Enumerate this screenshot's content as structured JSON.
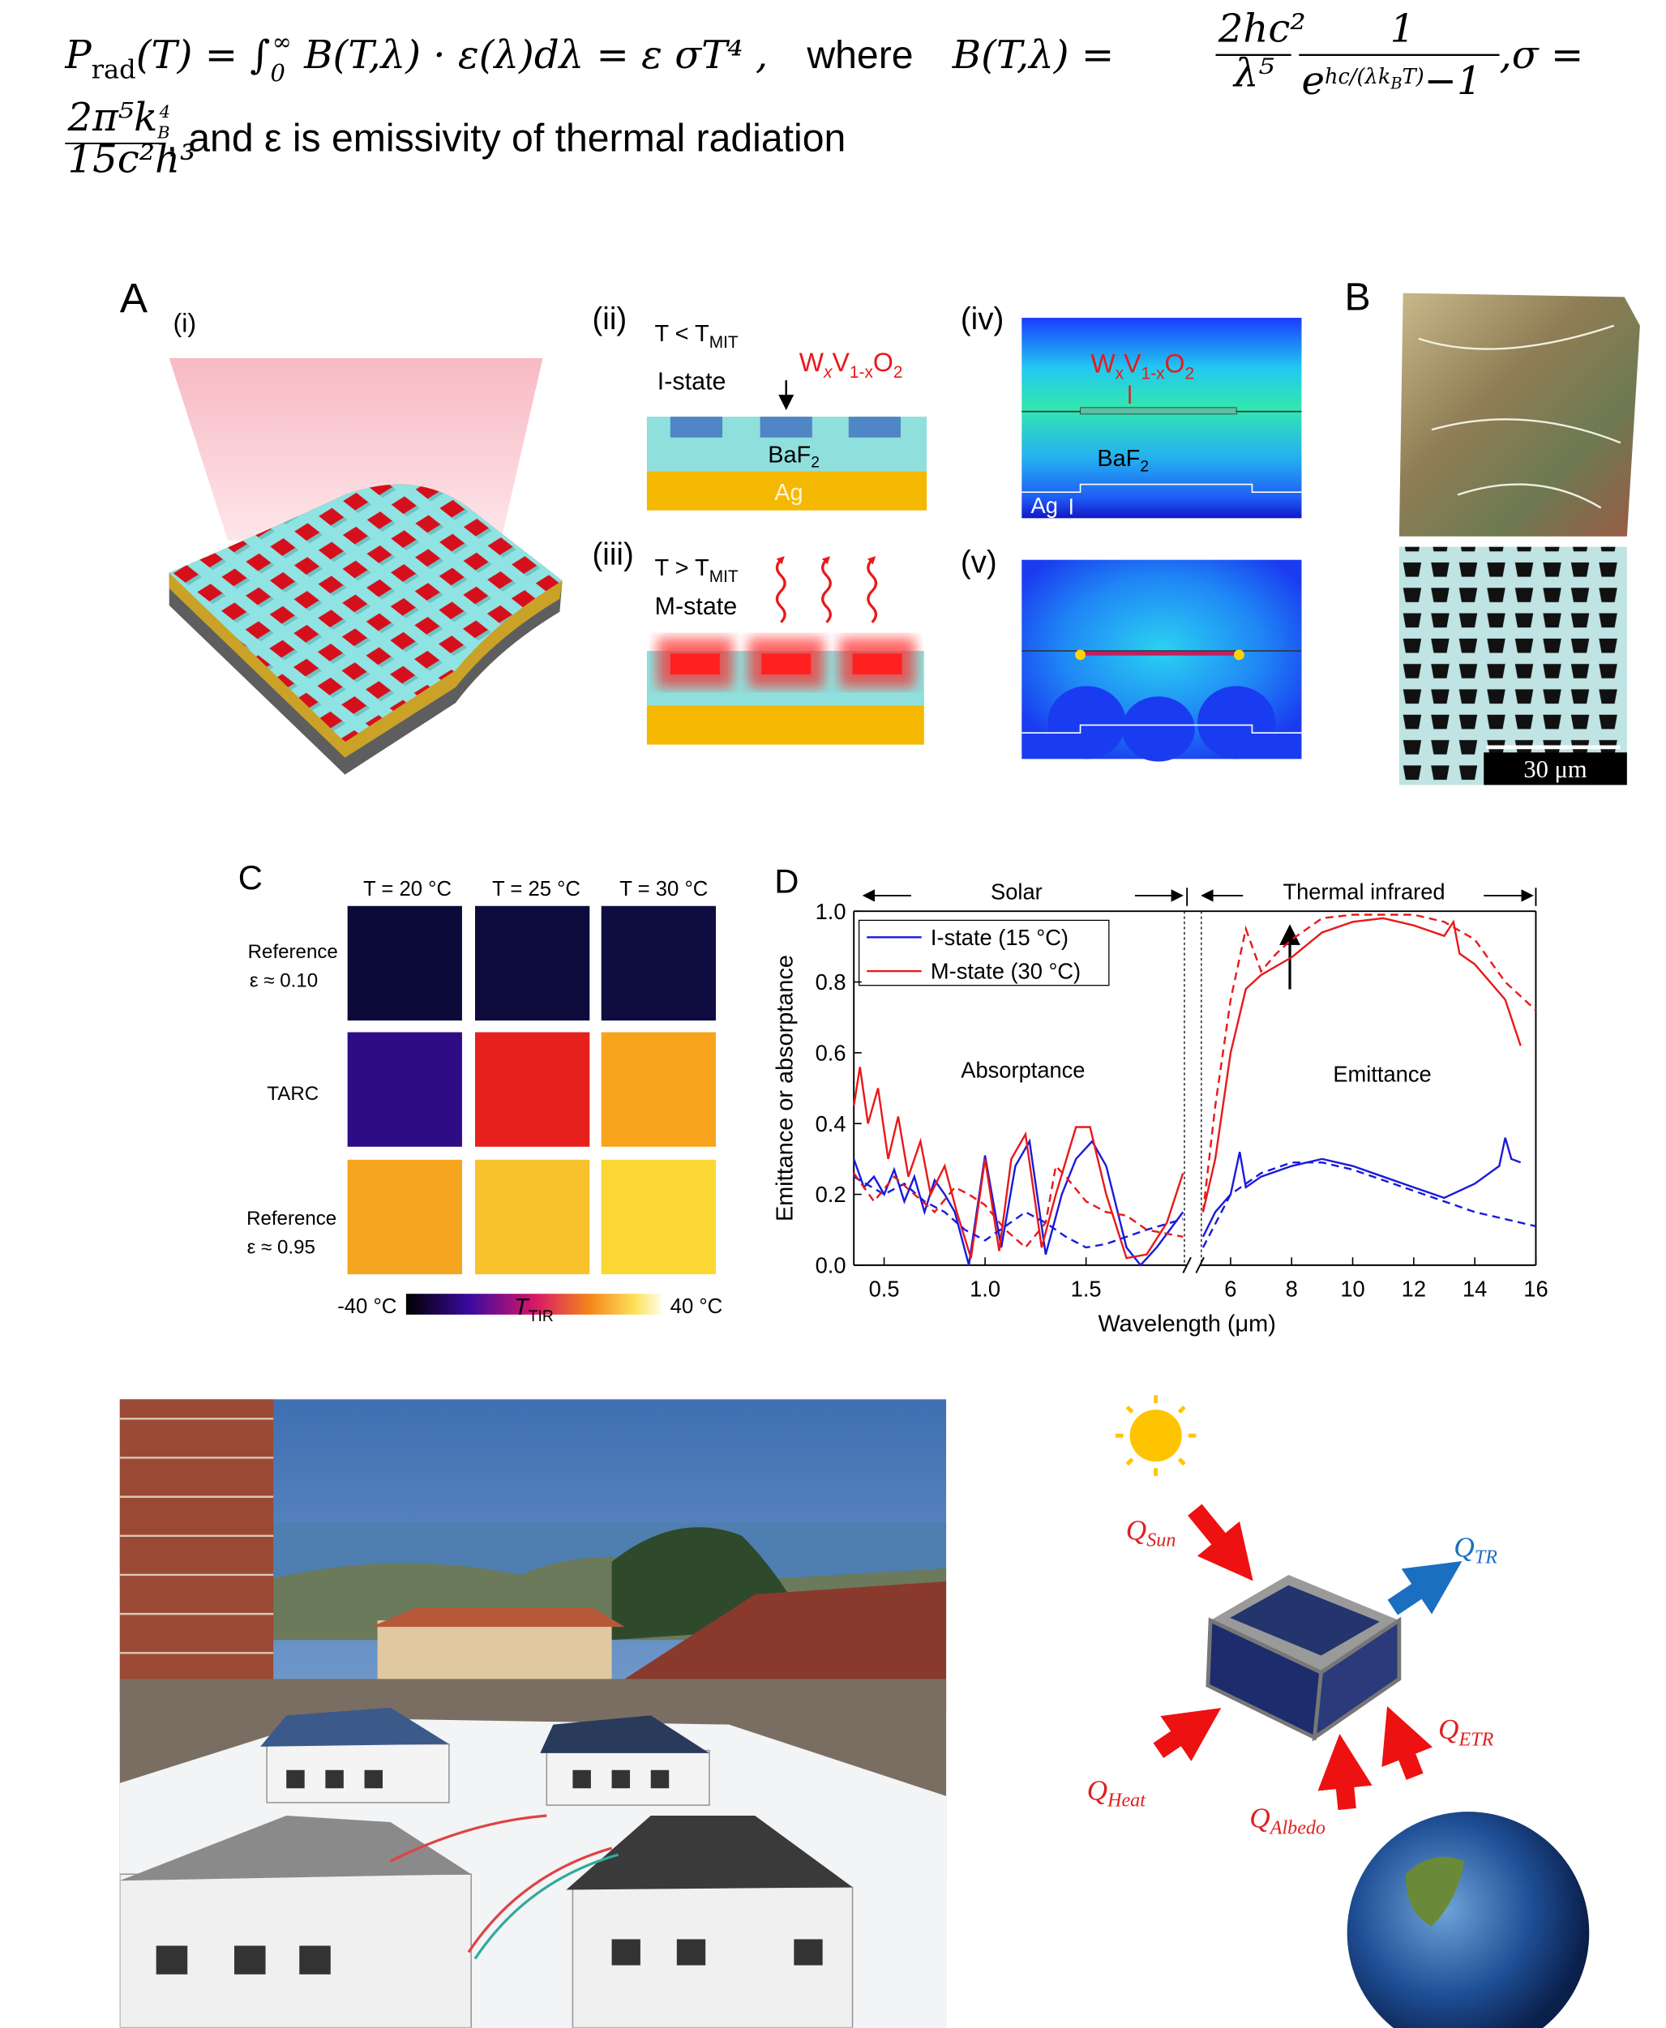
{
  "equation": {
    "line1": [
      "P",
      "rad",
      "(T) = ∫",
      "0",
      "∞",
      " B(T,λ) · ε(λ)dλ = ε σT⁴  ,",
      "where",
      "B(T,λ) =",
      "2hc²",
      "λ⁵",
      "1",
      "e",
      "hc/(λk",
      "B",
      "T)",
      "−1",
      ",σ ="
    ],
    "line2": [
      "2π⁵k",
      "B",
      "4",
      "15c²h³",
      ", and ε is emissivity of thermal radiation"
    ]
  },
  "panel_a": {
    "label": "A",
    "i": "(i)",
    "ii": {
      "label": "(ii)",
      "cond": [
        "T < T",
        "MIT"
      ],
      "state": "I-state",
      "material": [
        "W",
        "x",
        "V",
        "1-x",
        "O",
        "2"
      ],
      "layer1": [
        "BaF",
        "2"
      ],
      "layer2": "Ag"
    },
    "iii": {
      "label": "(iii)",
      "cond": [
        "T > T",
        "MIT"
      ],
      "state": "M-state"
    },
    "iv": {
      "label": "(iv)",
      "material": [
        "W",
        "x",
        "V",
        "1-x",
        "O",
        "2"
      ],
      "layer1": [
        "BaF",
        "2"
      ],
      "layer2": "Ag"
    },
    "v": {
      "label": "(v)"
    }
  },
  "panel_b": {
    "label": "B",
    "scale_bar": "30 μm"
  },
  "panel_c": {
    "label": "C",
    "columns": [
      "T = 20 °C",
      "T = 25 °C",
      "T = 30 °C"
    ],
    "rows": [
      [
        "Reference",
        "ε ≈ 0.10"
      ],
      [
        "TARC"
      ],
      [
        "Reference",
        "ε ≈ 0.95"
      ]
    ],
    "colorbar": {
      "min": "-40 °C",
      "symbol": [
        "T",
        "TIR"
      ],
      "max": "40 °C"
    }
  },
  "chart_data": {
    "type": "line",
    "label": "D",
    "regions": [
      "Solar",
      "Thermal infrared"
    ],
    "annotations": [
      "Absorptance",
      "Emittance"
    ],
    "xlabel": "Wavelength (μm)",
    "ylabel": "Emittance or absorptance",
    "ylim": [
      0,
      1
    ],
    "yticks": [
      {
        "value": 0,
        "label": "0.0"
      },
      0.2,
      0.4,
      0.6,
      0.8,
      {
        "value": 1,
        "label": "1.0"
      }
    ],
    "segments": [
      {
        "xlim": [
          0.35,
          2.0
        ],
        "xticks": [
          0.5,
          {
            "value": 1,
            "label": "1.0"
          },
          1.5
        ]
      },
      {
        "xlim": [
          5,
          16
        ],
        "xticks": [
          6,
          8,
          10,
          12,
          14,
          16
        ]
      }
    ],
    "series": [
      {
        "name": "I-state (15 °C)",
        "color": "#1a1adb",
        "x": [
          0.35,
          0.4,
          0.45,
          0.5,
          0.55,
          0.6,
          0.65,
          0.7,
          0.75,
          0.8,
          0.85,
          0.92,
          1.0,
          1.08,
          1.15,
          1.22,
          1.3,
          1.38,
          1.45,
          1.53,
          1.6,
          1.7,
          1.77,
          1.85,
          1.98,
          null,
          5.1,
          5.5,
          6,
          6.3,
          6.5,
          7,
          8,
          9,
          10,
          11,
          12,
          13,
          14,
          14.8,
          15,
          15.2,
          15.5
        ],
        "values": [
          0.3,
          0.22,
          0.25,
          0.2,
          0.27,
          0.18,
          0.25,
          0.15,
          0.24,
          0.2,
          0.15,
          0.0,
          0.31,
          0.05,
          0.28,
          0.35,
          0.03,
          0.2,
          0.3,
          0.35,
          0.28,
          0.05,
          0.0,
          0.05,
          0.15,
          null,
          0.08,
          0.15,
          0.2,
          0.32,
          0.22,
          0.25,
          0.28,
          0.3,
          0.28,
          0.25,
          0.22,
          0.19,
          0.23,
          0.28,
          0.36,
          0.3,
          0.29
        ]
      },
      {
        "name": "M-state (30 °C)",
        "color": "#e8191b",
        "x": [
          0.35,
          0.38,
          0.42,
          0.47,
          0.52,
          0.57,
          0.62,
          0.68,
          0.73,
          0.8,
          0.86,
          0.93,
          1.0,
          1.07,
          1.13,
          1.2,
          1.28,
          1.35,
          1.45,
          1.52,
          1.6,
          1.7,
          1.8,
          1.9,
          1.98,
          null,
          5.1,
          5.5,
          6,
          6.5,
          7,
          8,
          9,
          10,
          11,
          12,
          13,
          13.3,
          13.5,
          14,
          15,
          15.5
        ],
        "values": [
          0.45,
          0.56,
          0.4,
          0.5,
          0.3,
          0.42,
          0.25,
          0.35,
          0.2,
          0.28,
          0.15,
          0.02,
          0.3,
          0.04,
          0.3,
          0.37,
          0.05,
          0.2,
          0.39,
          0.39,
          0.2,
          0.02,
          0.03,
          0.12,
          0.26,
          null,
          0.15,
          0.3,
          0.6,
          0.78,
          0.82,
          0.87,
          0.94,
          0.97,
          0.98,
          0.96,
          0.93,
          0.97,
          0.88,
          0.85,
          0.75,
          0.62
        ]
      },
      {
        "color": "#1a1adb",
        "dash": true,
        "x": [
          0.35,
          0.5,
          0.6,
          0.7,
          0.8,
          0.9,
          1.0,
          1.1,
          1.2,
          1.3,
          1.4,
          1.5,
          1.6,
          1.7,
          1.8,
          1.98,
          null,
          5.1,
          6,
          7,
          8,
          9,
          10,
          11,
          12,
          13,
          14,
          15,
          16
        ],
        "values": [
          0.25,
          0.2,
          0.23,
          0.18,
          0.15,
          0.1,
          0.07,
          0.11,
          0.15,
          0.12,
          0.08,
          0.05,
          0.06,
          0.08,
          0.1,
          0.13,
          null,
          0.05,
          0.2,
          0.26,
          0.29,
          0.29,
          0.27,
          0.24,
          0.21,
          0.18,
          0.15,
          0.13,
          0.11
        ]
      },
      {
        "color": "#e8191b",
        "dash": true,
        "x": [
          0.35,
          0.45,
          0.55,
          0.65,
          0.75,
          0.85,
          0.92,
          1.0,
          1.1,
          1.2,
          1.3,
          1.35,
          1.4,
          1.5,
          1.6,
          1.7,
          1.8,
          1.98,
          null,
          5.1,
          5.5,
          6,
          6.5,
          7,
          7.5,
          8,
          9,
          10,
          11,
          12,
          13,
          14,
          15,
          16
        ],
        "values": [
          0.26,
          0.18,
          0.25,
          0.2,
          0.15,
          0.22,
          0.2,
          0.17,
          0.1,
          0.05,
          0.12,
          0.28,
          0.25,
          0.18,
          0.15,
          0.14,
          0.1,
          0.08,
          null,
          0.15,
          0.45,
          0.75,
          0.95,
          0.83,
          0.88,
          0.92,
          0.98,
          0.99,
          0.99,
          0.99,
          0.97,
          0.92,
          0.8,
          0.72
        ]
      }
    ]
  },
  "panel_e": {
    "sun": [
      "Q",
      "Sun"
    ],
    "tr": [
      "Q",
      "TR"
    ],
    "heat": [
      "Q",
      "Heat"
    ],
    "albedo": [
      "Q",
      "Albedo"
    ],
    "etr": [
      "Q",
      "ETR"
    ]
  }
}
